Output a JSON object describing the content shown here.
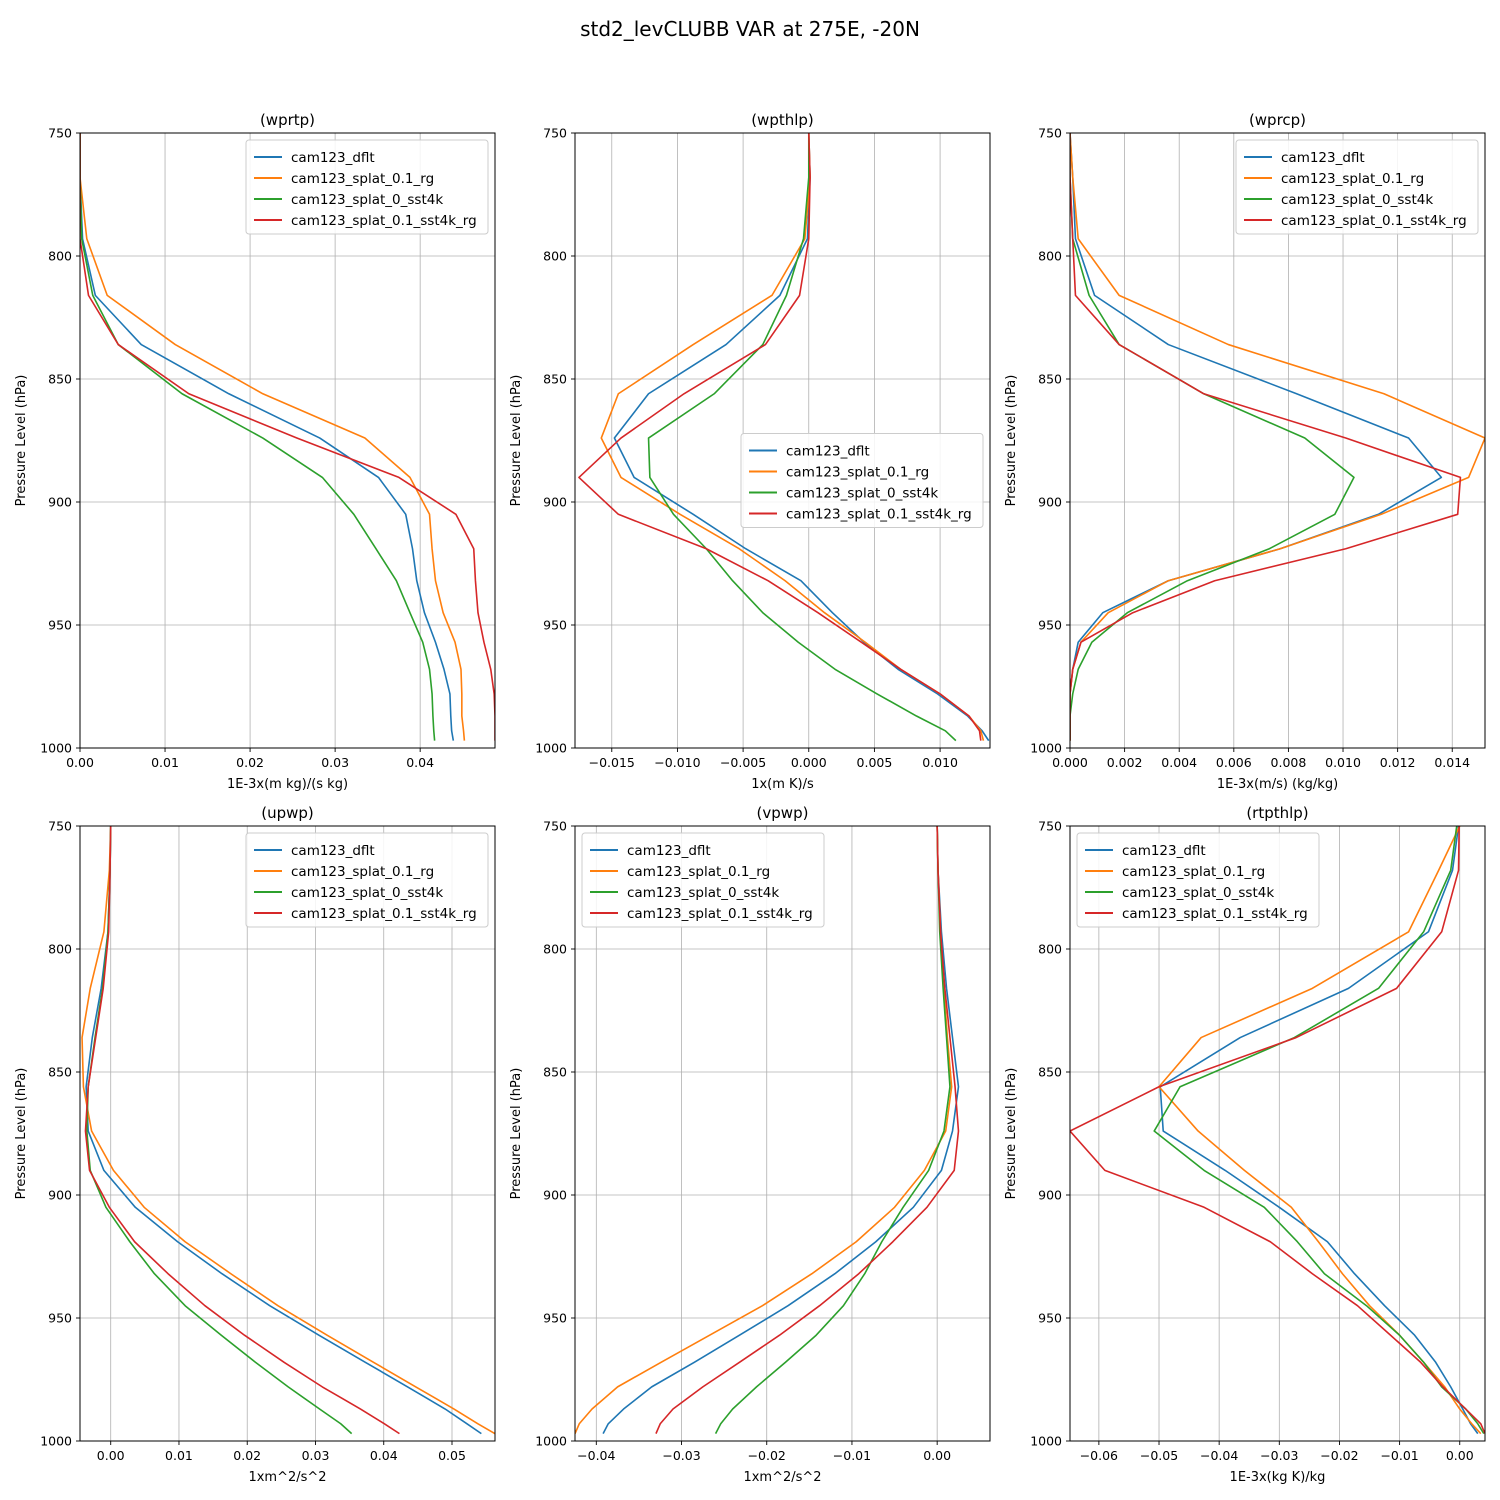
{
  "figure": {
    "title": "std2_levCLUBB VAR at 275E, -20N"
  },
  "colors": {
    "cam123_dflt": "#1f77b4",
    "cam123_splat_0.1_rg": "#ff7f0e",
    "cam123_splat_0_sst4k": "#2ca02c",
    "cam123_splat_0.1_sst4k_rg": "#d62728"
  },
  "chart_data": [
    {
      "type": "line",
      "title": "(wprtp)",
      "xlabel": "1E-3x(m kg)/(s kg)",
      "ylabel": "Pressure Level (hPa)",
      "xlim": [
        0,
        0.0488
      ],
      "ylim": [
        1000,
        750
      ],
      "xticks": [
        0,
        0.01,
        0.02,
        0.03,
        0.04
      ],
      "xtick_labels": [
        "0.00",
        "0.01",
        "0.02",
        "0.03",
        "0.04"
      ],
      "yticks": [
        750,
        800,
        850,
        900,
        950,
        1000
      ],
      "ytick_labels": [
        "750",
        "800",
        "850",
        "900",
        "950",
        "1000"
      ],
      "legend_loc": "upper right",
      "grid": true,
      "y": [
        750,
        768,
        793,
        816,
        836,
        856,
        874,
        890,
        905,
        919,
        932,
        945,
        957,
        968,
        978,
        987,
        993,
        997
      ],
      "series": [
        {
          "name": "cam123_dflt",
          "values": [
            0,
            0,
            0.0003,
            0.0018,
            0.0072,
            0.0175,
            0.0282,
            0.0351,
            0.0383,
            0.0391,
            0.0396,
            0.0405,
            0.0418,
            0.0428,
            0.0435,
            0.0436,
            0.0437,
            0.0439
          ]
        },
        {
          "name": "cam123_splat_0.1_rg",
          "values": [
            0,
            0,
            0.0008,
            0.0032,
            0.0112,
            0.0215,
            0.0335,
            0.0388,
            0.0411,
            0.0414,
            0.0418,
            0.0427,
            0.0441,
            0.0448,
            0.0449,
            0.0449,
            0.0451,
            0.0452
          ]
        },
        {
          "name": "cam123_splat_0_sst4k",
          "values": [
            0,
            0,
            0.0002,
            0.0015,
            0.0045,
            0.012,
            0.0215,
            0.0285,
            0.0322,
            0.0348,
            0.0372,
            0.0388,
            0.0403,
            0.0411,
            0.0414,
            0.0415,
            0.0416,
            0.0417
          ]
        },
        {
          "name": "cam123_splat_0.1_sst4k_rg",
          "values": [
            0,
            0,
            0,
            0.001,
            0.0045,
            0.0128,
            0.0255,
            0.0375,
            0.0442,
            0.0463,
            0.0465,
            0.0468,
            0.0475,
            0.0483,
            0.0487,
            0.0488,
            0.0488,
            0.0488
          ]
        }
      ]
    },
    {
      "type": "line",
      "title": "(wpthlp)",
      "xlabel": "1x(m K)/s",
      "ylabel": "Pressure Level (hPa)",
      "xlim": [
        -0.0178,
        0.0138
      ],
      "ylim": [
        1000,
        750
      ],
      "xticks": [
        -0.015,
        -0.01,
        -0.005,
        0,
        0.005,
        0.01
      ],
      "xtick_labels": [
        "−0.015",
        "−0.010",
        "−0.005",
        "0.000",
        "0.005",
        "0.010"
      ],
      "yticks": [
        750,
        800,
        850,
        900,
        950,
        1000
      ],
      "ytick_labels": [
        "750",
        "800",
        "850",
        "900",
        "950",
        "1000"
      ],
      "legend_loc": "center right",
      "grid": true,
      "y": [
        750,
        768,
        793,
        816,
        836,
        856,
        874,
        890,
        905,
        919,
        932,
        945,
        957,
        968,
        978,
        987,
        993,
        997
      ],
      "series": [
        {
          "name": "cam123_dflt",
          "values": [
            0,
            0.0001,
            -0.0001,
            -0.0022,
            -0.0063,
            -0.0122,
            -0.0148,
            -0.0133,
            -0.0088,
            -0.0048,
            -0.0006,
            0.0018,
            0.0042,
            0.0068,
            0.0098,
            0.0121,
            0.0132,
            0.0137
          ]
        },
        {
          "name": "cam123_splat_0.1_rg",
          "values": [
            0,
            0.0001,
            -0.0003,
            -0.0028,
            -0.0088,
            -0.0145,
            -0.0158,
            -0.0143,
            -0.0098,
            -0.0053,
            -0.0018,
            0.0012,
            0.0043,
            0.007,
            0.01,
            0.0122,
            0.0131,
            0.0133
          ]
        },
        {
          "name": "cam123_splat_0_sst4k",
          "values": [
            0,
            0,
            -0.0004,
            -0.0017,
            -0.0035,
            -0.0072,
            -0.0122,
            -0.0121,
            -0.0103,
            -0.0078,
            -0.0058,
            -0.0035,
            -0.0008,
            0.002,
            0.0052,
            0.0082,
            0.0104,
            0.0112
          ]
        },
        {
          "name": "cam123_splat_0.1_sst4k_rg",
          "values": [
            0,
            0.0001,
            0,
            -0.0007,
            -0.0033,
            -0.0095,
            -0.0143,
            -0.0175,
            -0.0145,
            -0.0078,
            -0.0031,
            0.0007,
            0.004,
            0.007,
            0.01,
            0.0122,
            0.013,
            0.0131
          ]
        }
      ]
    },
    {
      "type": "line",
      "title": "(wprcp)",
      "xlabel": "1E-3x(m/s) (kg/kg)",
      "ylabel": "Pressure Level (hPa)",
      "xlim": [
        0,
        0.0152
      ],
      "ylim": [
        1000,
        750
      ],
      "xticks": [
        0,
        0.002,
        0.004,
        0.006,
        0.008,
        0.01,
        0.012,
        0.014
      ],
      "xtick_labels": [
        "0.000",
        "0.002",
        "0.004",
        "0.006",
        "0.008",
        "0.010",
        "0.012",
        "0.014"
      ],
      "yticks": [
        750,
        800,
        850,
        900,
        950,
        1000
      ],
      "ytick_labels": [
        "750",
        "800",
        "850",
        "900",
        "950",
        "1000"
      ],
      "legend_loc": "upper right",
      "grid": true,
      "y": [
        750,
        768,
        793,
        816,
        836,
        856,
        874,
        890,
        905,
        919,
        932,
        945,
        957,
        968,
        978,
        987,
        993,
        997
      ],
      "series": [
        {
          "name": "cam123_dflt",
          "values": [
            0,
            0.0001,
            0.0002,
            0.0009,
            0.0036,
            0.0083,
            0.0124,
            0.0136,
            0.0113,
            0.0077,
            0.0036,
            0.0012,
            0.0003,
            0.0001,
            0,
            0,
            0,
            0
          ]
        },
        {
          "name": "cam123_splat_0.1_rg",
          "values": [
            0,
            0.0001,
            0.0003,
            0.0018,
            0.0058,
            0.0115,
            0.0152,
            0.0146,
            0.0114,
            0.0077,
            0.0036,
            0.0014,
            0.0004,
            0.0001,
            0,
            0,
            0,
            0
          ]
        },
        {
          "name": "cam123_splat_0_sst4k",
          "values": [
            0,
            0,
            0.0001,
            0.0007,
            0.0018,
            0.0049,
            0.0086,
            0.0104,
            0.0097,
            0.0073,
            0.0043,
            0.0021,
            0.0008,
            0.0003,
            0.0001,
            0,
            0,
            0
          ]
        },
        {
          "name": "cam123_splat_0.1_sst4k_rg",
          "values": [
            0,
            0,
            0.0001,
            0.0002,
            0.0018,
            0.0049,
            0.0101,
            0.0143,
            0.0142,
            0.0101,
            0.0053,
            0.0023,
            0.0004,
            0.0001,
            0,
            0,
            0,
            0
          ]
        }
      ]
    },
    {
      "type": "line",
      "title": "(upwp)",
      "xlabel": "1xm^2/s^2",
      "ylabel": "Pressure Level (hPa)",
      "xlim": [
        -0.0045,
        0.0563
      ],
      "ylim": [
        1000,
        750
      ],
      "xticks": [
        0,
        0.01,
        0.02,
        0.03,
        0.04,
        0.05
      ],
      "xtick_labels": [
        "0.00",
        "0.01",
        "0.02",
        "0.03",
        "0.04",
        "0.05"
      ],
      "yticks": [
        750,
        800,
        850,
        900,
        950,
        1000
      ],
      "ytick_labels": [
        "750",
        "800",
        "850",
        "900",
        "950",
        "1000"
      ],
      "legend_loc": "upper right",
      "grid": true,
      "y": [
        750,
        768,
        793,
        816,
        836,
        856,
        874,
        890,
        905,
        919,
        932,
        945,
        957,
        968,
        978,
        987,
        993,
        997
      ],
      "series": [
        {
          "name": "cam123_dflt",
          "values": [
            0,
            -0.0001,
            -0.0004,
            -0.0014,
            -0.0027,
            -0.0036,
            -0.0033,
            -0.001,
            0.0036,
            0.0098,
            0.0163,
            0.0233,
            0.0305,
            0.0373,
            0.0435,
            0.049,
            0.0522,
            0.0543
          ]
        },
        {
          "name": "cam123_splat_0.1_rg",
          "values": [
            0,
            -0.0002,
            -0.001,
            -0.003,
            -0.0042,
            -0.004,
            -0.0028,
            0.0004,
            0.0049,
            0.0109,
            0.0176,
            0.0245,
            0.0317,
            0.0385,
            0.0447,
            0.0503,
            0.0538,
            0.0563
          ]
        },
        {
          "name": "cam123_splat_0_sst4k",
          "values": [
            0,
            -0.0001,
            -0.0004,
            -0.0012,
            -0.0023,
            -0.0033,
            -0.0035,
            -0.003,
            -0.0007,
            0.0028,
            0.0064,
            0.0109,
            0.0162,
            0.0212,
            0.026,
            0.0306,
            0.0337,
            0.0353
          ]
        },
        {
          "name": "cam123_splat_0.1_sst4k_rg",
          "values": [
            0,
            -0.0001,
            -0.0003,
            -0.0011,
            -0.0022,
            -0.0033,
            -0.0037,
            -0.0031,
            -0.0002,
            0.0035,
            0.0084,
            0.0138,
            0.0196,
            0.0254,
            0.031,
            0.0366,
            0.0401,
            0.0423
          ]
        }
      ]
    },
    {
      "type": "line",
      "title": "(vpwp)",
      "xlabel": "1xm^2/s^2",
      "ylabel": "Pressure Level (hPa)",
      "xlim": [
        -0.0425,
        0.0062
      ],
      "ylim": [
        1000,
        750
      ],
      "xticks": [
        -0.04,
        -0.03,
        -0.02,
        -0.01,
        0
      ],
      "xtick_labels": [
        "−0.04",
        "−0.03",
        "−0.02",
        "−0.01",
        "0.00"
      ],
      "yticks": [
        750,
        800,
        850,
        900,
        950,
        1000
      ],
      "ytick_labels": [
        "750",
        "800",
        "850",
        "900",
        "950",
        "1000"
      ],
      "legend_loc": "upper left",
      "grid": true,
      "y": [
        750,
        768,
        793,
        816,
        836,
        856,
        874,
        890,
        905,
        919,
        932,
        945,
        957,
        968,
        978,
        987,
        993,
        997
      ],
      "series": [
        {
          "name": "cam123_dflt",
          "values": [
            0,
            0.0001,
            0.0005,
            0.0011,
            0.0018,
            0.0025,
            0.0018,
            0.0005,
            -0.0028,
            -0.0072,
            -0.012,
            -0.0175,
            -0.0232,
            -0.0285,
            -0.0335,
            -0.0368,
            -0.0386,
            -0.0392
          ]
        },
        {
          "name": "cam123_splat_0.1_rg",
          "values": [
            0,
            0.0001,
            0.0004,
            0.0008,
            0.0012,
            0.0017,
            0.001,
            -0.0015,
            -0.005,
            -0.0095,
            -0.0147,
            -0.0205,
            -0.0267,
            -0.0324,
            -0.0375,
            -0.0405,
            -0.042,
            -0.0425
          ]
        },
        {
          "name": "cam123_splat_0_sst4k",
          "values": [
            0,
            0.0001,
            0.0003,
            0.0007,
            0.0011,
            0.0015,
            0.0008,
            -0.001,
            -0.004,
            -0.0065,
            -0.0085,
            -0.011,
            -0.0142,
            -0.0178,
            -0.0212,
            -0.024,
            -0.0254,
            -0.026
          ]
        },
        {
          "name": "cam123_splat_0.1_sst4k_rg",
          "values": [
            0,
            0.0001,
            0.0004,
            0.0009,
            0.0015,
            0.0021,
            0.0025,
            0.002,
            -0.0012,
            -0.0052,
            -0.0092,
            -0.0138,
            -0.0185,
            -0.0232,
            -0.0275,
            -0.031,
            -0.0325,
            -0.033
          ]
        }
      ]
    },
    {
      "type": "line",
      "title": "(rtpthlp)",
      "xlabel": "1E-3x(kg K)/kg",
      "ylabel": "Pressure Level (hPa)",
      "xlim": [
        -0.0648,
        0.0042
      ],
      "ylim": [
        1000,
        750
      ],
      "xticks": [
        -0.06,
        -0.05,
        -0.04,
        -0.03,
        -0.02,
        -0.01,
        0
      ],
      "xtick_labels": [
        "−0.06",
        "−0.05",
        "−0.04",
        "−0.03",
        "−0.02",
        "−0.01",
        "0.00"
      ],
      "yticks": [
        750,
        800,
        850,
        900,
        950,
        1000
      ],
      "ytick_labels": [
        "750",
        "800",
        "850",
        "900",
        "950",
        "1000"
      ],
      "legend_loc": "upper left",
      "grid": true,
      "y": [
        750,
        768,
        793,
        816,
        836,
        856,
        874,
        890,
        905,
        919,
        932,
        945,
        957,
        968,
        978,
        987,
        993,
        997
      ],
      "series": [
        {
          "name": "cam123_dflt",
          "values": [
            -0.0002,
            -0.0012,
            -0.0052,
            -0.0185,
            -0.0365,
            -0.0498,
            -0.0493,
            -0.039,
            -0.03,
            -0.022,
            -0.0175,
            -0.0125,
            -0.0075,
            -0.004,
            -0.0015,
            0.0005,
            0.0018,
            0.003
          ]
        },
        {
          "name": "cam123_splat_0.1_rg",
          "values": [
            0,
            -0.0035,
            -0.0085,
            -0.0245,
            -0.043,
            -0.05,
            -0.0435,
            -0.0358,
            -0.028,
            -0.0235,
            -0.0195,
            -0.015,
            -0.01,
            -0.006,
            -0.0025,
            0.0,
            0.002,
            0.0035
          ]
        },
        {
          "name": "cam123_splat_0_sst4k",
          "values": [
            -0.0005,
            -0.0015,
            -0.006,
            -0.0135,
            -0.0275,
            -0.0465,
            -0.0508,
            -0.0425,
            -0.0325,
            -0.027,
            -0.0225,
            -0.0155,
            -0.01,
            -0.006,
            -0.003,
            0.001,
            0.003,
            0.004
          ]
        },
        {
          "name": "cam123_splat_0.1_sst4k_rg",
          "values": [
            -0.0001,
            -0.0002,
            -0.003,
            -0.0105,
            -0.0272,
            -0.05,
            -0.0648,
            -0.059,
            -0.0425,
            -0.0315,
            -0.0245,
            -0.017,
            -0.0115,
            -0.0065,
            -0.0028,
            0.001,
            0.0035,
            0.0042
          ]
        }
      ]
    }
  ]
}
